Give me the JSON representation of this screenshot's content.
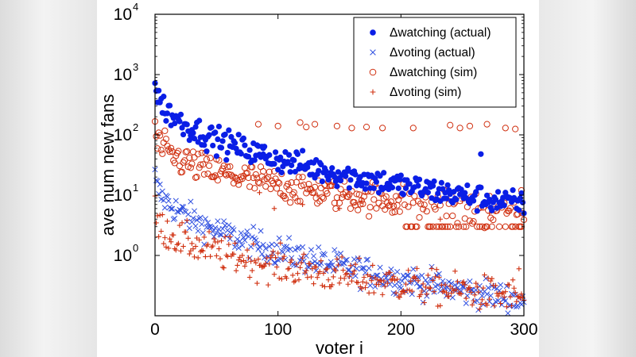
{
  "chart_data": {
    "type": "scatter",
    "xlabel": "voter i",
    "ylabel": "ave num new fans",
    "x_range": [
      0,
      300
    ],
    "x_ticks": [
      0,
      100,
      200,
      300
    ],
    "y_scale": "log",
    "y_range_log10": [
      -1.0,
      4.0
    ],
    "y_ticks": [
      {
        "base": "10",
        "exp": "4",
        "value": 10000
      },
      {
        "base": "10",
        "exp": "3",
        "value": 1000
      },
      {
        "base": "10",
        "exp": "2",
        "value": 100
      },
      {
        "base": "10",
        "exp": "1",
        "value": 10
      },
      {
        "base": "10",
        "exp": "0",
        "value": 1
      }
    ],
    "legend_position": "top-right",
    "series": [
      {
        "name": "Δwatching (actual)",
        "marker": "filled-circle",
        "color": "#0a1ee6",
        "trend": {
          "start": 800,
          "end": 7,
          "decay": 0.75,
          "jitter": 0.45,
          "outliers": [
            [
              88,
              60
            ],
            [
              265,
              48
            ]
          ]
        }
      },
      {
        "name": "Δvoting (actual)",
        "marker": "x",
        "color": "#3050e0",
        "trend": {
          "start": 20,
          "end": 0.18,
          "decay": 0.85,
          "jitter": 0.5,
          "outliers": []
        }
      },
      {
        "name": "Δwatching (sim)",
        "marker": "open-circle",
        "color": "#d03010",
        "trend": {
          "start": 120,
          "end": 5,
          "decay": 0.7,
          "jitter": 0.55,
          "outliers": [
            [
              84,
              150
            ],
            [
              100,
              140
            ],
            [
              118,
              160
            ],
            [
              123,
              135
            ],
            [
              130,
              150
            ],
            [
              148,
              140
            ],
            [
              160,
              130
            ],
            [
              172,
              135
            ],
            [
              185,
              130
            ],
            [
              210,
              130
            ],
            [
              240,
              145
            ],
            [
              248,
              130
            ],
            [
              256,
              140
            ],
            [
              270,
              150
            ],
            [
              285,
              130
            ],
            [
              293,
              125
            ],
            [
              298,
              12
            ]
          ]
        }
      },
      {
        "name": "Δvoting (sim)",
        "marker": "plus",
        "color": "#d03010",
        "trend": {
          "start": 5,
          "end": 0.2,
          "decay": 0.8,
          "jitter": 0.6,
          "outliers": [
            [
              85,
              11
            ],
            [
              97,
              6
            ],
            [
              120,
              7
            ],
            [
              132,
              10
            ],
            [
              150,
              6
            ],
            [
              168,
              8
            ],
            [
              203,
              14
            ],
            [
              232,
              4
            ],
            [
              250,
              8
            ],
            [
              272,
              5
            ],
            [
              296,
              0.6
            ]
          ]
        }
      }
    ]
  }
}
